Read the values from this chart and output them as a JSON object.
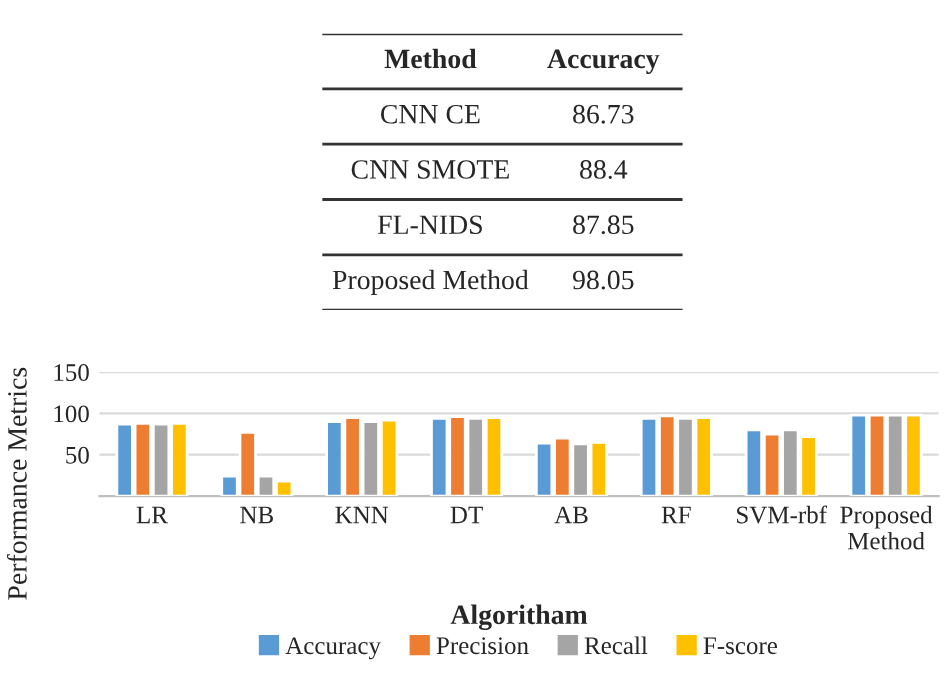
{
  "chart_data": [
    {
      "type": "other",
      "xlabel": "Method",
      "ylabel": "Accuracy",
      "categories": [
        "CNN CE",
        "CNN SMOTE",
        "FL-NIDS",
        "Proposed Method"
      ],
      "values": [
        86.73,
        88.4,
        87.85,
        98.05
      ],
      "data_labels": true
    },
    {
      "type": "bar",
      "xlabel": "Algoritham",
      "ylabel": "Performance Metrics",
      "categories": [
        "LR",
        "NB",
        "KNN",
        "DT",
        "AB",
        "RF",
        "SVM-rbf",
        "Proposed\nMethod"
      ],
      "series": [
        {
          "name": "Accuracy",
          "color": "#5b9bd5",
          "values": [
            87,
            24,
            90,
            94,
            64,
            94,
            80,
            98
          ]
        },
        {
          "name": "Precision",
          "color": "#ed7d31",
          "values": [
            88,
            77,
            95,
            96,
            70,
            97,
            75,
            98
          ]
        },
        {
          "name": "Recall",
          "color": "#a5a5a5",
          "values": [
            87,
            24,
            90,
            94,
            63,
            94,
            80,
            98
          ]
        },
        {
          "name": "F-score",
          "color": "#ffc000",
          "values": [
            88,
            18,
            92,
            95,
            65,
            95,
            72,
            98
          ]
        }
      ],
      "ylim": [
        0,
        150
      ],
      "yticks": [
        {
          "value": 0,
          "label": null
        },
        50,
        100,
        150
      ],
      "grid": "y",
      "legend": "bottom"
    }
  ]
}
